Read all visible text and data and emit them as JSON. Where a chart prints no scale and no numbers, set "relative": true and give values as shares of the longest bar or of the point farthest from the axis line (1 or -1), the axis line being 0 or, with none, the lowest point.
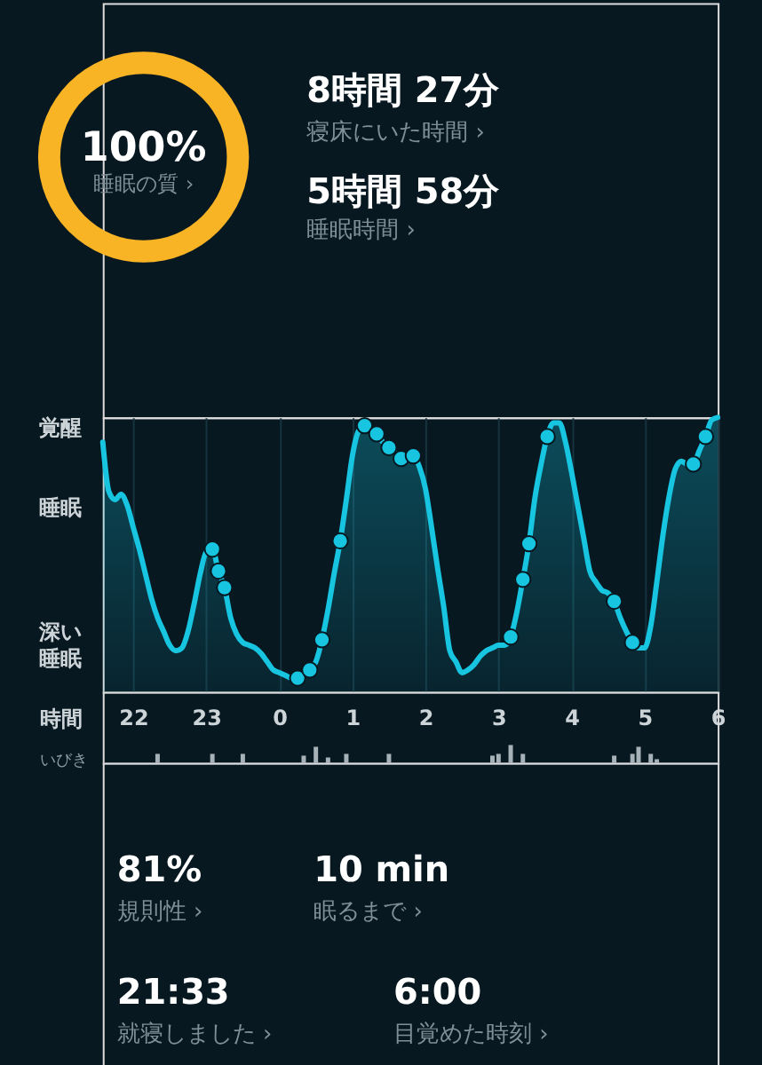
{
  "chart_data": [
    {
      "type": "donut",
      "categories": [
        null
      ],
      "values": [
        100
      ],
      "colors": [
        "#f9b425"
      ],
      "value_labels": [
        "100%"
      ],
      "annotations": [
        "睡眠の質 ›"
      ]
    },
    {
      "type": "other",
      "annotations": [
        "8時間 27分",
        "寝床にいた時間 ›",
        "5時間 58分",
        "睡眠時間 ›"
      ]
    },
    {
      "type": "area",
      "xlabel": "時間",
      "relative": true,
      "categories": [
        null,
        null,
        null,
        null,
        null,
        "22",
        null,
        null,
        null,
        null,
        null,
        null,
        null,
        null,
        null,
        null,
        null,
        "23",
        null,
        null,
        null,
        null,
        null,
        null,
        null,
        null,
        null,
        null,
        null,
        "0",
        null,
        null,
        null,
        null,
        null,
        null,
        null,
        null,
        null,
        null,
        null,
        "1",
        null,
        null,
        null,
        null,
        null,
        null,
        null,
        null,
        null,
        null,
        null,
        "2",
        null,
        null,
        null,
        null,
        null,
        null,
        null,
        null,
        null,
        null,
        null,
        "3",
        null,
        null,
        null,
        null,
        null,
        null,
        null,
        null,
        null,
        null,
        null,
        "4",
        null,
        null,
        null,
        null,
        null,
        null,
        null,
        null,
        null,
        null,
        null,
        "5",
        null,
        null,
        null,
        null,
        null,
        null,
        null,
        null,
        null,
        null,
        null,
        "6"
      ],
      "annotations": [
        "覚醒",
        "睡眠",
        "深い睡眠"
      ],
      "grid": "x",
      "series": [
        {
          "type": "area",
          "color": "#17c5e0",
          "values": [
            0.91,
            0.73,
            0.7,
            0.72,
            0.68,
            0.6,
            0.52,
            0.43,
            0.34,
            0.27,
            0.22,
            0.17,
            0.15,
            0.16,
            0.22,
            0.32,
            0.43,
            0.51,
            0.52,
            0.44,
            0.38,
            0.27,
            0.21,
            0.18,
            0.17,
            0.16,
            0.14,
            0.11,
            0.08,
            0.07,
            0.06,
            0.05,
            0.05,
            0.06,
            0.08,
            0.11,
            0.19,
            0.3,
            0.43,
            0.55,
            0.7,
            0.86,
            0.95,
            0.97,
            0.96,
            0.94,
            0.91,
            0.89,
            0.87,
            0.85,
            0.86,
            0.86,
            0.82,
            0.74,
            0.6,
            0.45,
            0.31,
            0.15,
            0.11,
            0.07,
            0.08,
            0.1,
            0.13,
            0.15,
            0.16,
            0.17,
            0.17,
            0.2,
            0.29,
            0.41,
            0.54,
            0.71,
            0.83,
            0.93,
            0.98,
            0.98,
            0.91,
            0.8,
            0.68,
            0.56,
            0.44,
            0.4,
            0.37,
            0.36,
            0.33,
            0.27,
            0.22,
            0.18,
            0.16,
            0.16,
            0.24,
            0.4,
            0.57,
            0.71,
            0.81,
            0.84,
            0.83,
            0.83,
            0.88,
            0.93,
            0.99,
            1
          ]
        },
        {
          "type": "scatter",
          "color": "#17c5e0",
          "marker": "circle",
          "values": [
            null,
            null,
            null,
            null,
            null,
            null,
            null,
            null,
            null,
            null,
            null,
            null,
            null,
            null,
            null,
            null,
            null,
            null,
            0.52,
            0.44,
            0.38,
            null,
            null,
            null,
            null,
            null,
            null,
            null,
            null,
            null,
            null,
            null,
            0.05,
            null,
            0.08,
            null,
            0.19,
            null,
            null,
            0.55,
            null,
            null,
            null,
            0.97,
            null,
            0.94,
            null,
            0.89,
            null,
            0.85,
            null,
            0.86,
            null,
            null,
            null,
            null,
            null,
            null,
            null,
            null,
            null,
            null,
            null,
            null,
            null,
            null,
            null,
            0.2,
            null,
            0.41,
            0.54,
            null,
            null,
            0.93,
            null,
            null,
            null,
            null,
            null,
            null,
            null,
            null,
            null,
            null,
            0.33,
            null,
            null,
            0.18,
            null,
            null,
            null,
            null,
            null,
            null,
            null,
            null,
            null,
            0.83,
            null,
            0.93,
            null,
            null
          ]
        }
      ]
    },
    {
      "type": "bar",
      "ylabel": "いびき",
      "relative": true,
      "color": "#a7b2b8",
      "categories": [
        null,
        null,
        null,
        null,
        null,
        null,
        null,
        null,
        null,
        null,
        null,
        null,
        null,
        null,
        null,
        null,
        null,
        null,
        null,
        null,
        null,
        null,
        null,
        null,
        null,
        null,
        null,
        null,
        null,
        null,
        null,
        null,
        null,
        null,
        null,
        null,
        null,
        null,
        null,
        null,
        null,
        null,
        null,
        null,
        null,
        null,
        null,
        null,
        null,
        null,
        null,
        null,
        null,
        null,
        null,
        null,
        null,
        null,
        null,
        null,
        null,
        null,
        null,
        null,
        null,
        null,
        null,
        null,
        null,
        null,
        null,
        null,
        null,
        null,
        null,
        null,
        null,
        null,
        null,
        null,
        null,
        null,
        null,
        null,
        null,
        null,
        null,
        null,
        null,
        null,
        null,
        null,
        null,
        null,
        null,
        null,
        null,
        null,
        null,
        null,
        null,
        null
      ],
      "values": [
        null,
        null,
        null,
        null,
        null,
        null,
        null,
        null,
        null,
        0.5,
        null,
        null,
        null,
        null,
        null,
        null,
        null,
        null,
        0.5,
        null,
        null,
        null,
        null,
        0.5,
        null,
        null,
        null,
        null,
        null,
        null,
        null,
        null,
        null,
        0.4,
        null,
        0.9,
        null,
        0.3,
        null,
        null,
        0.5,
        null,
        null,
        null,
        null,
        null,
        null,
        0.5,
        null,
        null,
        null,
        null,
        null,
        null,
        null,
        null,
        null,
        null,
        null,
        null,
        null,
        null,
        null,
        null,
        0.4,
        0.5,
        null,
        1,
        null,
        0.5,
        null,
        null,
        null,
        null,
        null,
        null,
        null,
        null,
        null,
        null,
        null,
        null,
        null,
        null,
        0.4,
        null,
        null,
        0.5,
        0.9,
        null,
        0.5,
        0.2,
        null,
        null,
        null,
        null,
        null,
        null,
        null,
        null,
        null,
        null
      ]
    },
    {
      "type": "other",
      "annotations": [
        "81%",
        "規則性 ›",
        "10 min",
        "眠るまで ›",
        "21:33",
        "就寝しました ›",
        "6:00",
        "目覚めた時刻 ›"
      ]
    }
  ]
}
